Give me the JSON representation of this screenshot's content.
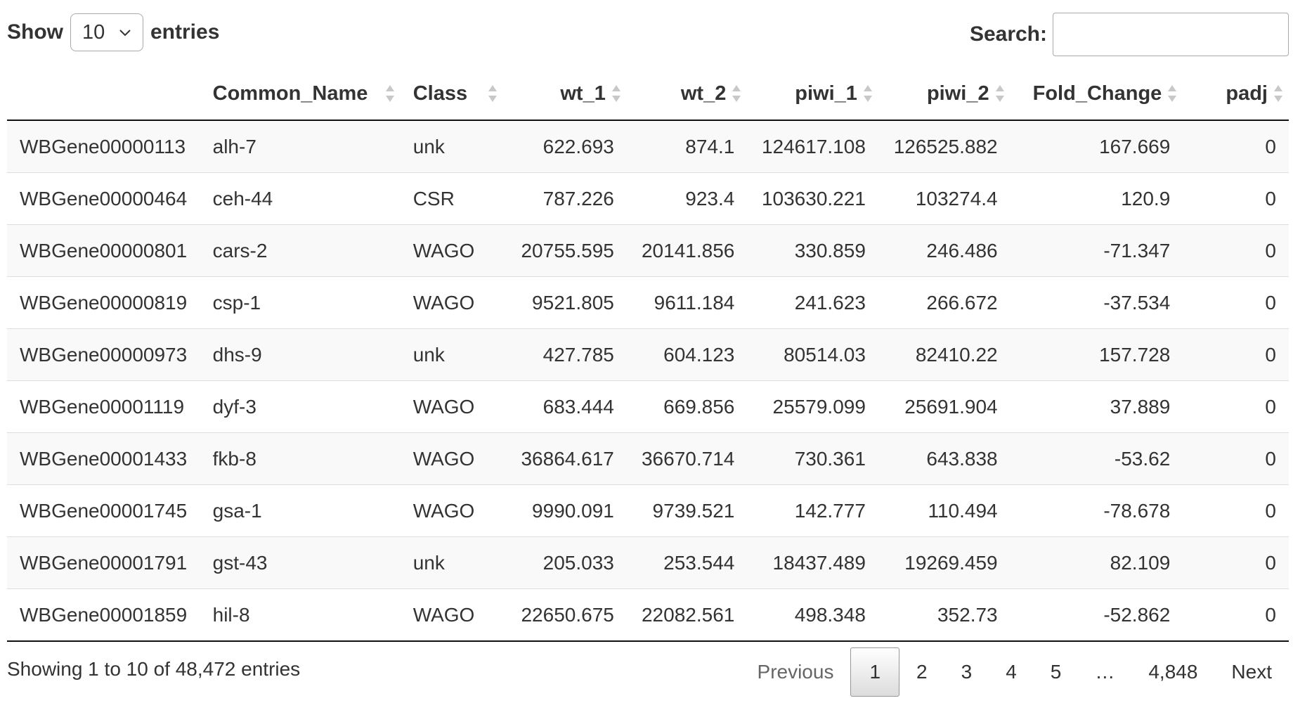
{
  "length": {
    "show_label": "Show",
    "selected": "10",
    "entries_label": "entries"
  },
  "search": {
    "label": "Search:",
    "value": ""
  },
  "columns": [
    "",
    "Common_Name",
    "Class",
    "wt_1",
    "wt_2",
    "piwi_1",
    "piwi_2",
    "Fold_Change",
    "padj"
  ],
  "rows": [
    [
      "WBGene00000113",
      "alh-7",
      "unk",
      "622.693",
      "874.1",
      "124617.108",
      "126525.882",
      "167.669",
      "0"
    ],
    [
      "WBGene00000464",
      "ceh-44",
      "CSR",
      "787.226",
      "923.4",
      "103630.221",
      "103274.4",
      "120.9",
      "0"
    ],
    [
      "WBGene00000801",
      "cars-2",
      "WAGO",
      "20755.595",
      "20141.856",
      "330.859",
      "246.486",
      "-71.347",
      "0"
    ],
    [
      "WBGene00000819",
      "csp-1",
      "WAGO",
      "9521.805",
      "9611.184",
      "241.623",
      "266.672",
      "-37.534",
      "0"
    ],
    [
      "WBGene00000973",
      "dhs-9",
      "unk",
      "427.785",
      "604.123",
      "80514.03",
      "82410.22",
      "157.728",
      "0"
    ],
    [
      "WBGene00001119",
      "dyf-3",
      "WAGO",
      "683.444",
      "669.856",
      "25579.099",
      "25691.904",
      "37.889",
      "0"
    ],
    [
      "WBGene00001433",
      "fkb-8",
      "WAGO",
      "36864.617",
      "36670.714",
      "730.361",
      "643.838",
      "-53.62",
      "0"
    ],
    [
      "WBGene00001745",
      "gsa-1",
      "WAGO",
      "9990.091",
      "9739.521",
      "142.777",
      "110.494",
      "-78.678",
      "0"
    ],
    [
      "WBGene00001791",
      "gst-43",
      "unk",
      "205.033",
      "253.544",
      "18437.489",
      "19269.459",
      "82.109",
      "0"
    ],
    [
      "WBGene00001859",
      "hil-8",
      "WAGO",
      "22650.675",
      "22082.561",
      "498.348",
      "352.73",
      "-52.862",
      "0"
    ]
  ],
  "info": "Showing 1 to 10 of 48,472 entries",
  "pagination": {
    "previous": "Previous",
    "pages": [
      "1",
      "2",
      "3",
      "4",
      "5",
      "…",
      "4,848"
    ],
    "current": "1",
    "next": "Next"
  }
}
